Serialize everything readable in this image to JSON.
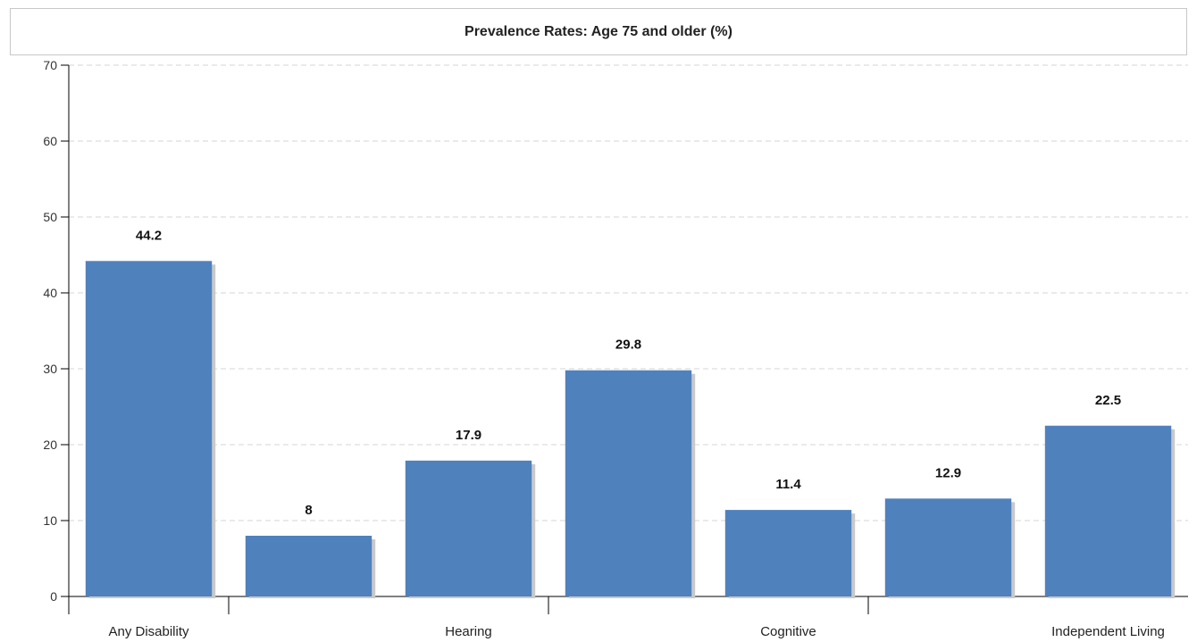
{
  "chart_data": {
    "type": "bar",
    "title": "Prevalence Rates: Age 75 and older  (%)",
    "xlabel": "",
    "ylabel": "",
    "ylim": [
      0,
      70
    ],
    "yticks": [
      0,
      10,
      20,
      30,
      40,
      50,
      60,
      70
    ],
    "grid": true,
    "legend": "none",
    "categories": [
      "Any Disability",
      "",
      "Hearing",
      "",
      "Cognitive",
      "",
      "Independent Living"
    ],
    "values": [
      44.2,
      8,
      17.9,
      29.8,
      11.4,
      12.9,
      22.5
    ],
    "data_labels": [
      "44.2",
      "8",
      "17.9",
      "29.8",
      "11.4",
      "12.9",
      "22.5"
    ],
    "bar_color": "#4f81bd",
    "shadow_color": "#c9c9c9",
    "grid_color": "#d4d4d4"
  }
}
